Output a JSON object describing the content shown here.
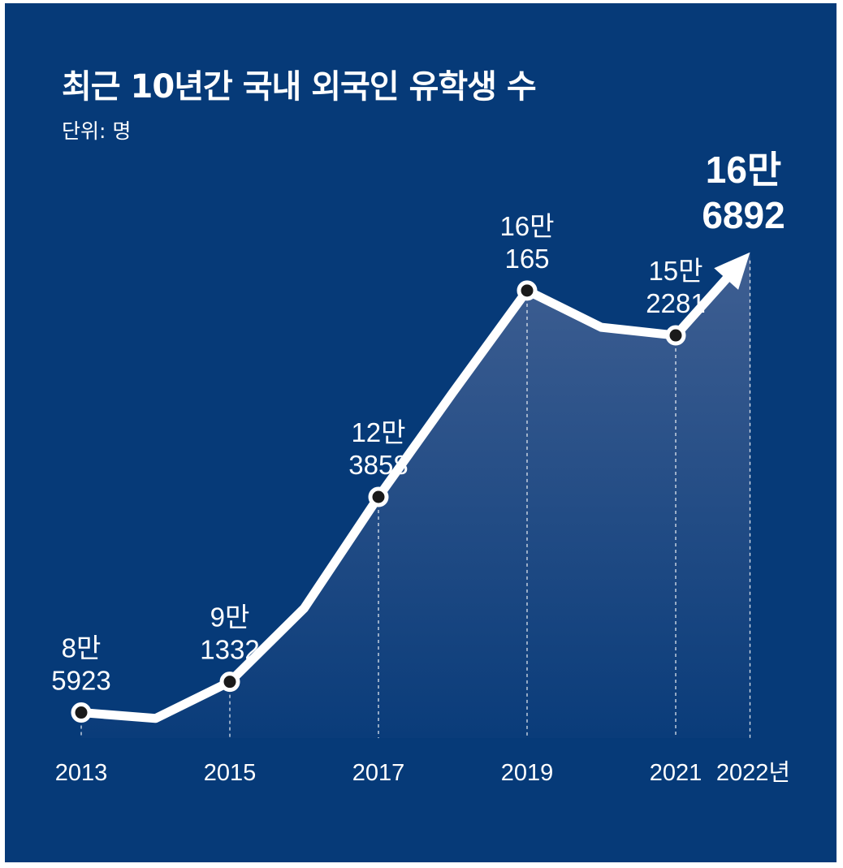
{
  "chart_data": {
    "type": "area",
    "title": "최근 10년간 국내 외국인 유학생 수",
    "unit_label": "단위: 명",
    "x": [
      2013,
      2014,
      2015,
      2016,
      2017,
      2018,
      2019,
      2020,
      2021,
      2022
    ],
    "values": [
      85923,
      84891,
      91332,
      104262,
      123858,
      142205,
      160165,
      153695,
      152281,
      166892
    ],
    "labels": [
      {
        "index": 0,
        "line1": "8만",
        "line2": "5923"
      },
      {
        "index": 2,
        "line1": "9만",
        "line2": "1332"
      },
      {
        "index": 4,
        "line1": "12만",
        "line2": "3858"
      },
      {
        "index": 6,
        "line1": "16만",
        "line2": "165"
      },
      {
        "index": 8,
        "line1": "15만",
        "line2": "2281"
      },
      {
        "index": 9,
        "line1": "16만",
        "line2": "6892"
      }
    ],
    "ticks": [
      {
        "index": 0,
        "text": "2013"
      },
      {
        "index": 2,
        "text": "2015"
      },
      {
        "index": 4,
        "text": "2017"
      },
      {
        "index": 6,
        "text": "2019"
      },
      {
        "index": 8,
        "text": "2021"
      },
      {
        "index": 9,
        "text": "2022년"
      }
    ],
    "marker_indices": [
      0,
      2,
      4,
      6,
      8
    ],
    "ylim": [
      75000,
      175000
    ],
    "grid": false,
    "legend": "none",
    "colors": {
      "background": "#063a78",
      "line": "#ffffff",
      "area_top": "#3f5f92",
      "area_bottom": "#0a3c7a",
      "marker": "#1a1a1a"
    }
  }
}
